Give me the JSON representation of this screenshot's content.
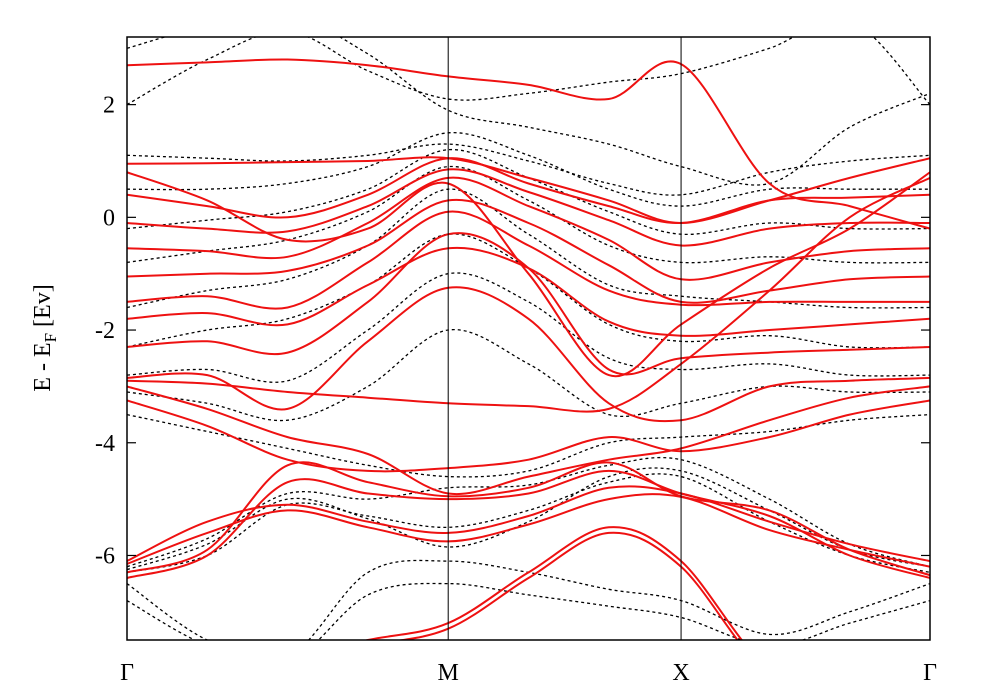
{
  "chart_data": {
    "type": "line",
    "title": "",
    "ylabel_parts": {
      "main": "E - E",
      "subscript": "F",
      "suffix": " [Ev]"
    },
    "ylim": [
      -7.5,
      3.2
    ],
    "yticks": [
      2,
      0,
      -2,
      -4,
      -6
    ],
    "ytick_labels": [
      "2",
      "0",
      "-2",
      "-4",
      "-6"
    ],
    "x_ticks": [
      {
        "label": "Γ",
        "pos": 0.0
      },
      {
        "label": "M",
        "pos": 0.4
      },
      {
        "label": "X",
        "pos": 0.69
      },
      {
        "label": "Γ",
        "pos": 1.0
      }
    ],
    "colors": {
      "series_a": "#ee1111",
      "series_b": "#000000"
    },
    "series_styles": {
      "series_a": "solid",
      "series_b": "dashed"
    },
    "x_samples": [
      0.0,
      0.1,
      0.2,
      0.3,
      0.4,
      0.5,
      0.6,
      0.69,
      0.8,
      0.9,
      1.0
    ],
    "bands_solid": [
      [
        -6.4,
        -6.0,
        -4.7,
        -4.9,
        -5.0,
        -4.9,
        -4.5,
        -4.9,
        -5.3,
        -6.0,
        -6.4
      ],
      [
        -6.3,
        -5.9,
        -4.4,
        -4.7,
        -4.95,
        -4.8,
        -4.35,
        -4.95,
        -5.2,
        -5.9,
        -6.35
      ],
      [
        -6.15,
        -5.6,
        -5.2,
        -5.5,
        -5.75,
        -5.45,
        -5.0,
        -4.96,
        -5.55,
        -5.9,
        -6.2
      ],
      [
        -6.1,
        -5.4,
        -5.1,
        -5.4,
        -5.6,
        -5.3,
        -4.8,
        -4.9,
        -5.4,
        -5.8,
        -6.1
      ],
      [
        -3.25,
        -3.7,
        -4.3,
        -4.5,
        -4.45,
        -4.3,
        -3.9,
        -4.15,
        -3.9,
        -3.5,
        -3.25
      ],
      [
        -3.0,
        -3.4,
        -3.9,
        -4.2,
        -4.9,
        -4.6,
        -4.3,
        -4.1,
        -3.6,
        -3.2,
        -3.0
      ],
      [
        -2.85,
        -2.8,
        -3.4,
        -2.2,
        -1.25,
        -1.8,
        -3.3,
        -3.6,
        -3.0,
        -2.9,
        -2.85
      ],
      [
        -2.3,
        -2.2,
        -2.4,
        -1.5,
        -0.3,
        -0.9,
        -2.7,
        -2.5,
        -2.4,
        -2.35,
        -2.3
      ],
      [
        -1.8,
        -1.7,
        -1.9,
        -1.2,
        -0.55,
        -0.9,
        -1.85,
        -2.1,
        -2.0,
        -1.9,
        -1.8
      ],
      [
        -1.5,
        -1.4,
        -1.6,
        -0.8,
        0.1,
        -0.5,
        -1.3,
        -1.55,
        -1.5,
        -1.5,
        -1.5
      ],
      [
        -1.05,
        -1.0,
        -0.95,
        -0.5,
        0.3,
        -0.1,
        -0.85,
        -1.5,
        -1.3,
        -1.1,
        -1.05
      ],
      [
        -0.55,
        -0.6,
        -0.7,
        -0.1,
        0.7,
        0.2,
        -0.4,
        -1.1,
        -0.8,
        -0.6,
        -0.55
      ],
      [
        -0.1,
        -0.2,
        -0.25,
        0.2,
        0.85,
        0.45,
        -0.05,
        -0.5,
        -0.2,
        -0.1,
        -0.1
      ],
      [
        0.4,
        0.2,
        0.0,
        0.4,
        1.05,
        0.6,
        0.2,
        -0.1,
        0.3,
        0.35,
        0.4
      ],
      [
        0.8,
        0.3,
        -0.4,
        -0.2,
        0.6,
        -1.0,
        -2.8,
        -1.9,
        -0.9,
        -0.2,
        0.8
      ],
      [
        0.95,
        0.96,
        0.98,
        1.0,
        1.05,
        0.7,
        0.3,
        -0.1,
        0.3,
        0.7,
        1.05
      ],
      [
        -2.9,
        -2.95,
        -3.1,
        -3.2,
        -3.3,
        -3.35,
        -3.4,
        -2.6,
        -1.3,
        0.0,
        0.7
      ],
      [
        2.7,
        2.75,
        2.8,
        2.7,
        2.5,
        2.35,
        2.1,
        2.72,
        0.6,
        0.2,
        -0.2
      ]
    ],
    "bands_dashed": [
      [
        -6.3,
        -6.0,
        -5.1,
        -5.3,
        -5.5,
        -5.2,
        -4.7,
        -4.6,
        -5.4,
        -6.0,
        -6.3
      ],
      [
        -6.25,
        -5.8,
        -5.0,
        -5.35,
        -5.85,
        -5.4,
        -4.6,
        -4.5,
        -5.2,
        -5.9,
        -6.2
      ],
      [
        -6.2,
        -5.7,
        -4.9,
        -5.0,
        -4.8,
        -4.75,
        -4.4,
        -4.3,
        -5.0,
        -5.8,
        -6.2
      ],
      [
        -3.5,
        -3.8,
        -4.1,
        -4.4,
        -4.6,
        -4.5,
        -4.0,
        -3.9,
        -3.8,
        -3.6,
        -3.5
      ],
      [
        -3.1,
        -3.3,
        -3.6,
        -3.0,
        -2.0,
        -2.6,
        -3.5,
        -3.3,
        -3.0,
        -3.1,
        -3.1
      ],
      [
        -2.8,
        -2.7,
        -2.9,
        -2.0,
        -1.0,
        -1.5,
        -2.5,
        -2.7,
        -2.6,
        -2.8,
        -2.8
      ],
      [
        -2.3,
        -2.0,
        -1.8,
        -1.2,
        -0.3,
        -0.9,
        -1.9,
        -2.2,
        -2.1,
        -2.3,
        -2.3
      ],
      [
        -1.6,
        -1.3,
        -1.1,
        -0.5,
        0.5,
        -0.3,
        -1.2,
        -1.4,
        -1.5,
        -1.6,
        -1.6
      ],
      [
        -0.8,
        -0.6,
        -0.4,
        0.1,
        0.9,
        0.3,
        -0.5,
        -0.8,
        -0.7,
        -0.8,
        -0.8
      ],
      [
        -0.2,
        -0.05,
        0.1,
        0.5,
        1.2,
        0.7,
        0.1,
        -0.3,
        -0.1,
        -0.2,
        -0.2
      ],
      [
        0.5,
        0.5,
        0.6,
        0.9,
        1.5,
        1.1,
        0.5,
        0.2,
        0.5,
        0.5,
        0.5
      ],
      [
        1.1,
        1.05,
        1.0,
        1.1,
        1.3,
        1.0,
        0.6,
        0.4,
        0.8,
        1.0,
        1.1
      ],
      [
        2.0,
        2.8,
        3.3,
        2.6,
        2.1,
        2.2,
        2.4,
        2.55,
        3.0,
        3.5,
        2.0
      ],
      [
        3.0,
        3.4,
        3.6,
        2.9,
        1.9,
        1.6,
        1.3,
        0.9,
        0.6,
        1.6,
        2.2
      ],
      [
        -6.5,
        -7.5,
        -7.8,
        -6.3,
        -6.1,
        -6.3,
        -6.6,
        -6.8,
        -7.4,
        -7.0,
        -6.5
      ],
      [
        -6.8,
        -7.6,
        -7.9,
        -6.7,
        -6.5,
        -6.7,
        -6.9,
        -7.1,
        -7.6,
        -7.2,
        -6.8
      ]
    ],
    "bands_solid_low": [
      [
        -7.6,
        -7.7,
        -7.8,
        -7.5,
        -7.2,
        -6.3,
        -5.5,
        -6.1,
        -8.0,
        -8.0,
        -8.0
      ],
      [
        -7.7,
        -7.8,
        -7.9,
        -7.6,
        -7.3,
        -6.4,
        -5.6,
        -6.2,
        -8.1,
        -8.1,
        -8.1
      ]
    ]
  }
}
